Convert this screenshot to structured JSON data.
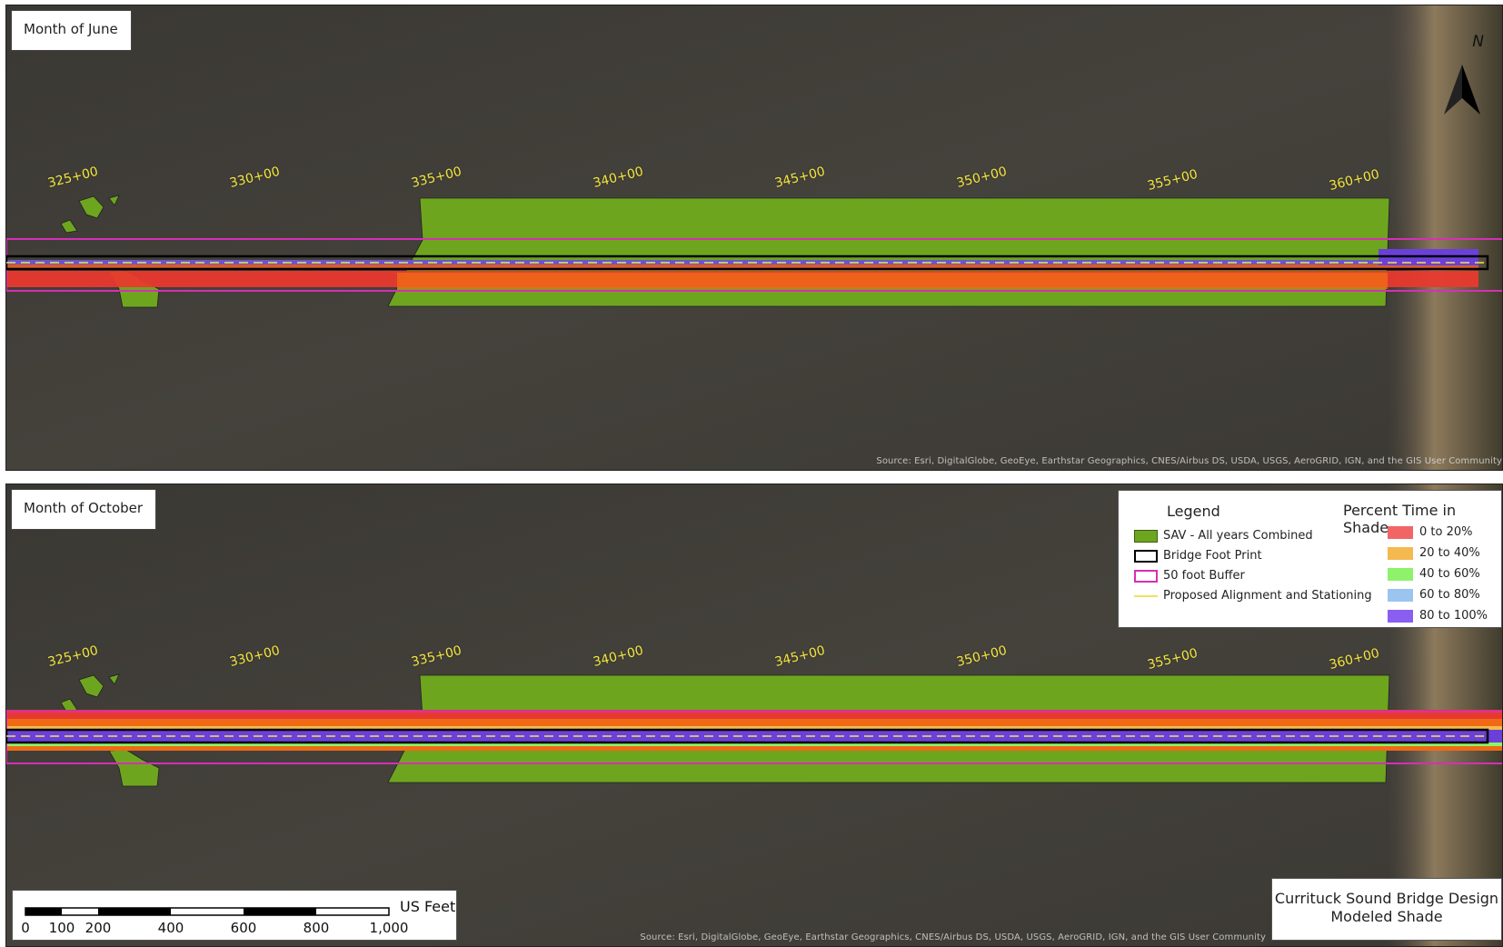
{
  "panels": [
    {
      "title": "Month of June",
      "credits": "Source: Esri, DigitalGlobe, GeoEye, Earthstar Geographics, CNES/Airbus DS, USDA, USGS, AeroGRID, IGN, and the GIS User Community"
    },
    {
      "title": "Month of October",
      "credits": "Source: Esri, DigitalGlobe, GeoEye, Earthstar Geographics, CNES/Airbus DS, USDA, USGS, AeroGRID, IGN, and the GIS User Community"
    }
  ],
  "stations": [
    "325+00",
    "330+00",
    "335+00",
    "340+00",
    "345+00",
    "350+00",
    "355+00",
    "360+00"
  ],
  "north_arrow": {
    "label": "N",
    "icon": "north-arrow-icon"
  },
  "legend": {
    "title": "Legend",
    "items": [
      {
        "label": "SAV - All years Combined",
        "color": "#6ea51f",
        "style": "fill"
      },
      {
        "label": "Bridge Foot Print",
        "color": "#000000",
        "style": "outline"
      },
      {
        "label": "50 foot Buffer",
        "color": "#d62fb4",
        "style": "outline"
      },
      {
        "label": "Proposed Alignment and Stationing",
        "color": "#efe35a",
        "style": "line"
      }
    ],
    "percent_title": "Percent Time in Shade",
    "percent_items": [
      {
        "label": "0 to 20%",
        "color": "#f26565"
      },
      {
        "label": "20 to 40%",
        "color": "#f5b94f"
      },
      {
        "label": "40 to 60%",
        "color": "#8ef26a"
      },
      {
        "label": "60 to 80%",
        "color": "#9cc4f0"
      },
      {
        "label": "80 to 100%",
        "color": "#8a5ef0"
      }
    ]
  },
  "scale_bar": {
    "unit": "US Feet",
    "ticks": [
      "0",
      "100",
      "200",
      "400",
      "600",
      "800",
      "1,000"
    ]
  },
  "design_box": {
    "line1": "Currituck Sound Bridge Design",
    "line2": "Modeled Shade"
  },
  "colors": {
    "water": "#3f3d39",
    "sav": "#6ea51f",
    "footprint": "#000000",
    "buffer": "#d62fb4",
    "alignment": "#efe35a"
  }
}
